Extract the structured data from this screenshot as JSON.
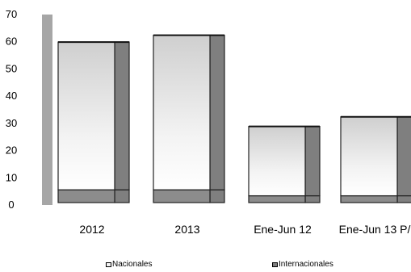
{
  "chart_data": {
    "type": "bar",
    "stacked": true,
    "style": "3d",
    "categories": [
      "2012",
      "2013",
      "Ene-Jun 12",
      "Ene-Jun 13 P/"
    ],
    "series": [
      {
        "name": "Nacionales",
        "values": [
          4.7,
          4.7,
          2.5,
          2.5
        ],
        "color": "#f2f2f2"
      },
      {
        "name": "Internacionales",
        "values": [
          54.3,
          56.8,
          25.5,
          29.0
        ],
        "color": "#7f7f7f"
      }
    ],
    "yticks": [
      0,
      10,
      20,
      30,
      40,
      50,
      60,
      70
    ],
    "ylim": [
      0,
      70
    ],
    "grid": false,
    "legend": "bottom"
  }
}
